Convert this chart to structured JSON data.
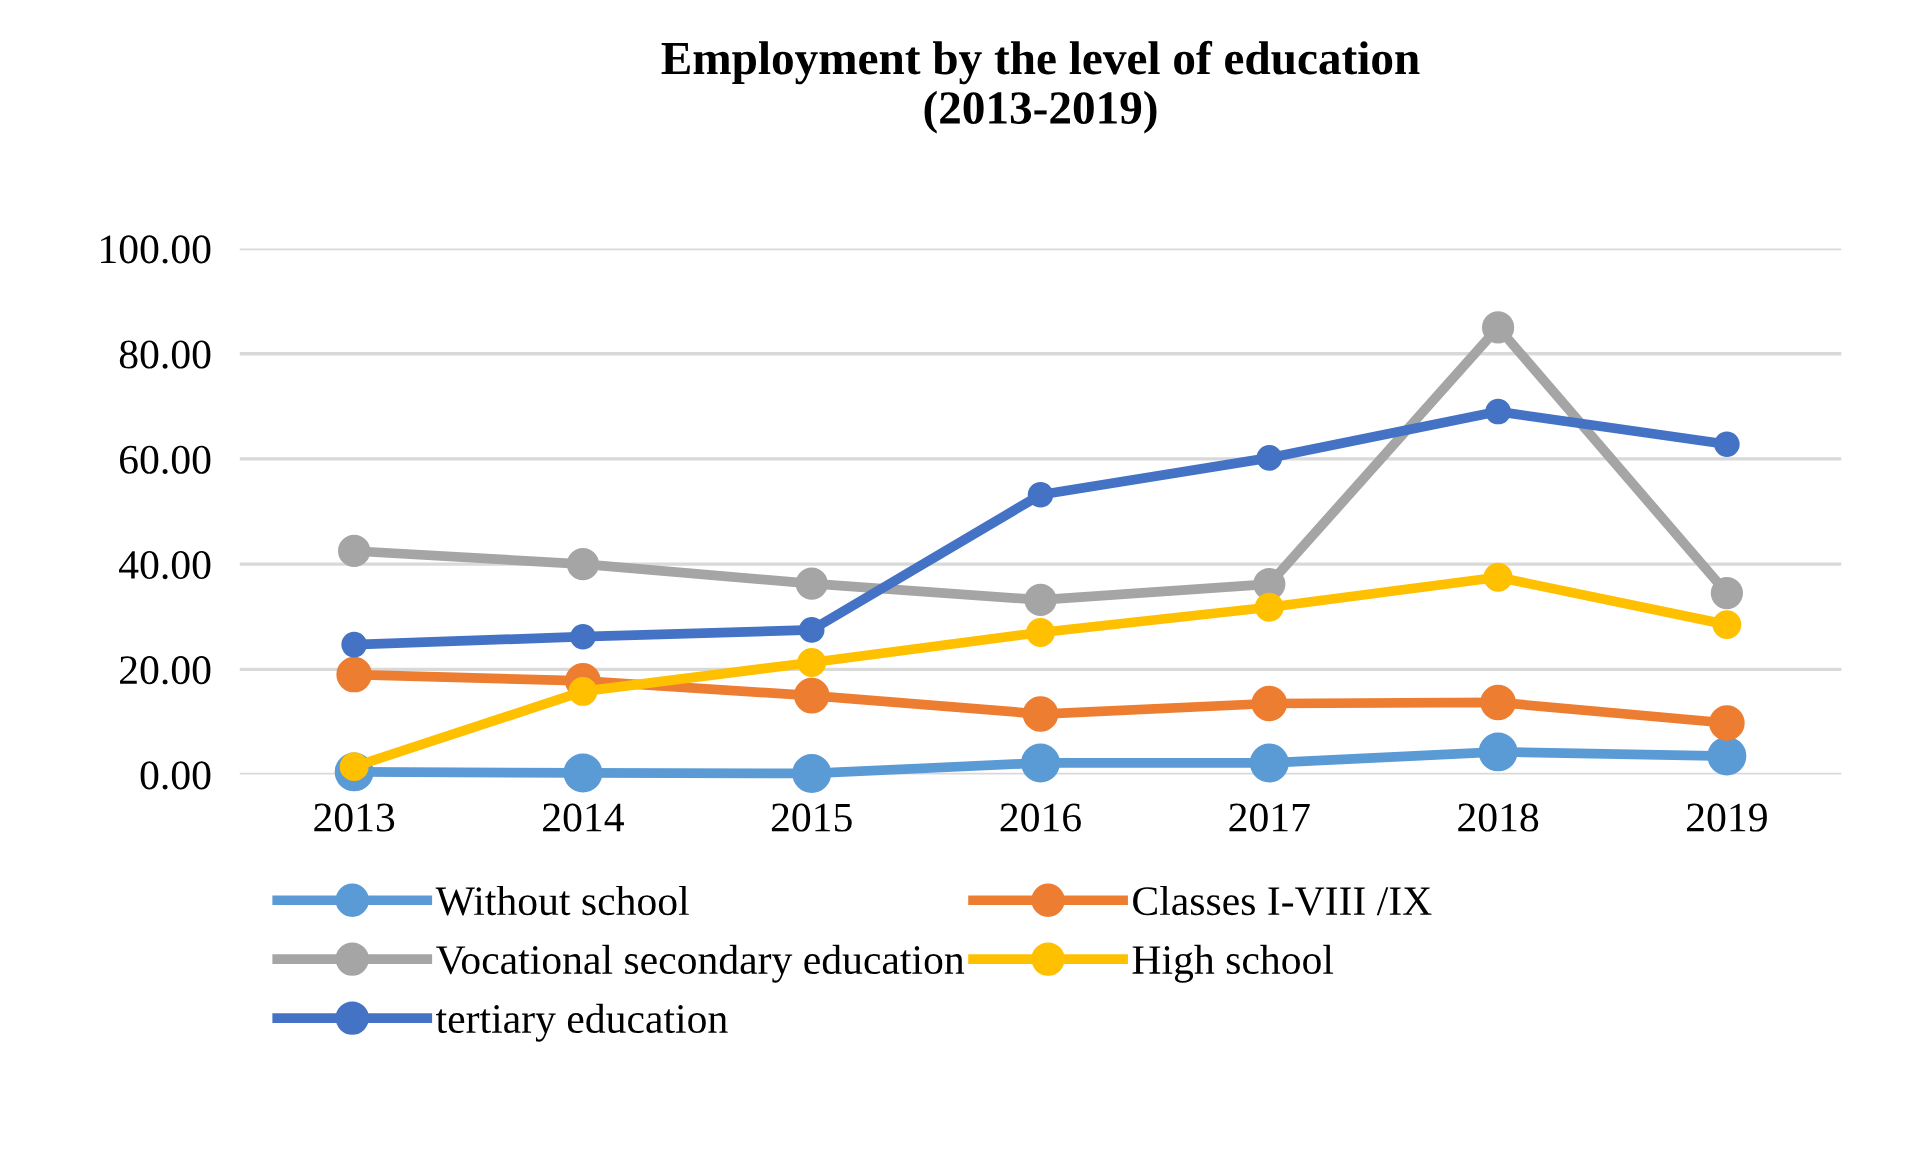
{
  "chart_data": {
    "type": "line",
    "title": "Employment by the level of education\n(2013-2019)",
    "categories": [
      "2013",
      "2014",
      "2015",
      "2016",
      "2017",
      "2018",
      "2019"
    ],
    "series": [
      {
        "name": "Without school",
        "color": "#5b9bd5",
        "values": [
          0.5,
          0.3,
          0.2,
          2.2,
          2.2,
          4.3,
          3.5
        ]
      },
      {
        "name": "Classes I-VIII /IX",
        "color": "#ed7d31",
        "values": [
          19,
          17.8,
          15,
          11.5,
          13.5,
          13.7,
          9.8
        ]
      },
      {
        "name": "Vocational secondary education",
        "color": "#a5a5a5",
        "values": [
          42.5,
          40,
          36.3,
          33.2,
          36.2,
          85,
          34.5
        ]
      },
      {
        "name": "High school",
        "color": "#ffc000",
        "values": [
          1.5,
          15.8,
          21.3,
          27,
          31.8,
          37.5,
          28.5
        ]
      },
      {
        "name": "tertiary education",
        "color": "#4472c4",
        "values": [
          24.7,
          26.2,
          27.5,
          53.2,
          60.2,
          69,
          62.8
        ]
      }
    ],
    "ylim": [
      0,
      100
    ],
    "yticks": [
      {
        "value": 0,
        "label": "0.00"
      },
      {
        "value": 20,
        "label": "20.00"
      },
      {
        "value": 40,
        "label": "40.00"
      },
      {
        "value": 60,
        "label": "60.00"
      },
      {
        "value": 80,
        "label": "80.00"
      },
      {
        "value": 100,
        "label": "100.00"
      }
    ],
    "grid": "y",
    "legend": "bottom",
    "marker": "circle",
    "line_style": "solid"
  }
}
